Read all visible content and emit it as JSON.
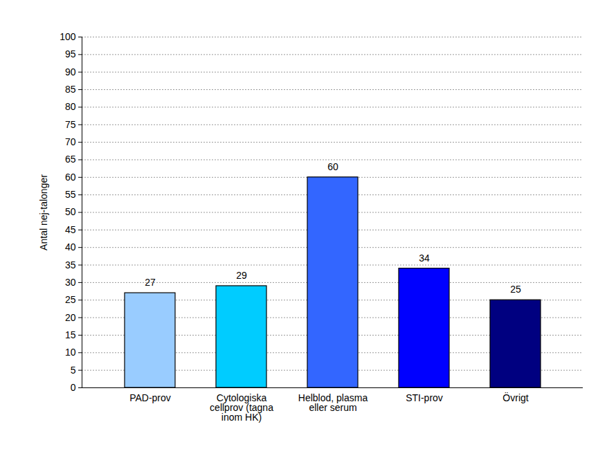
{
  "chart_data": {
    "type": "bar",
    "y_label": "Antal nej-talonger",
    "categories": [
      "PAD-prov",
      "Cytologiska\ncellprov (tagna\ninom HK)",
      "Helblod, plasma\neller serum",
      "STI-prov",
      "Övrigt"
    ],
    "values": [
      27,
      29,
      60,
      34,
      25
    ],
    "colors": [
      "#99ccff",
      "#00ccff",
      "#3366ff",
      "#0000ff",
      "#000080"
    ],
    "ylim": [
      0,
      100
    ],
    "yticks": [
      0,
      5,
      10,
      15,
      20,
      25,
      30,
      35,
      40,
      45,
      50,
      55,
      60,
      65,
      70,
      75,
      80,
      85,
      90,
      95,
      100
    ],
    "grid": true,
    "data_labels": true
  }
}
